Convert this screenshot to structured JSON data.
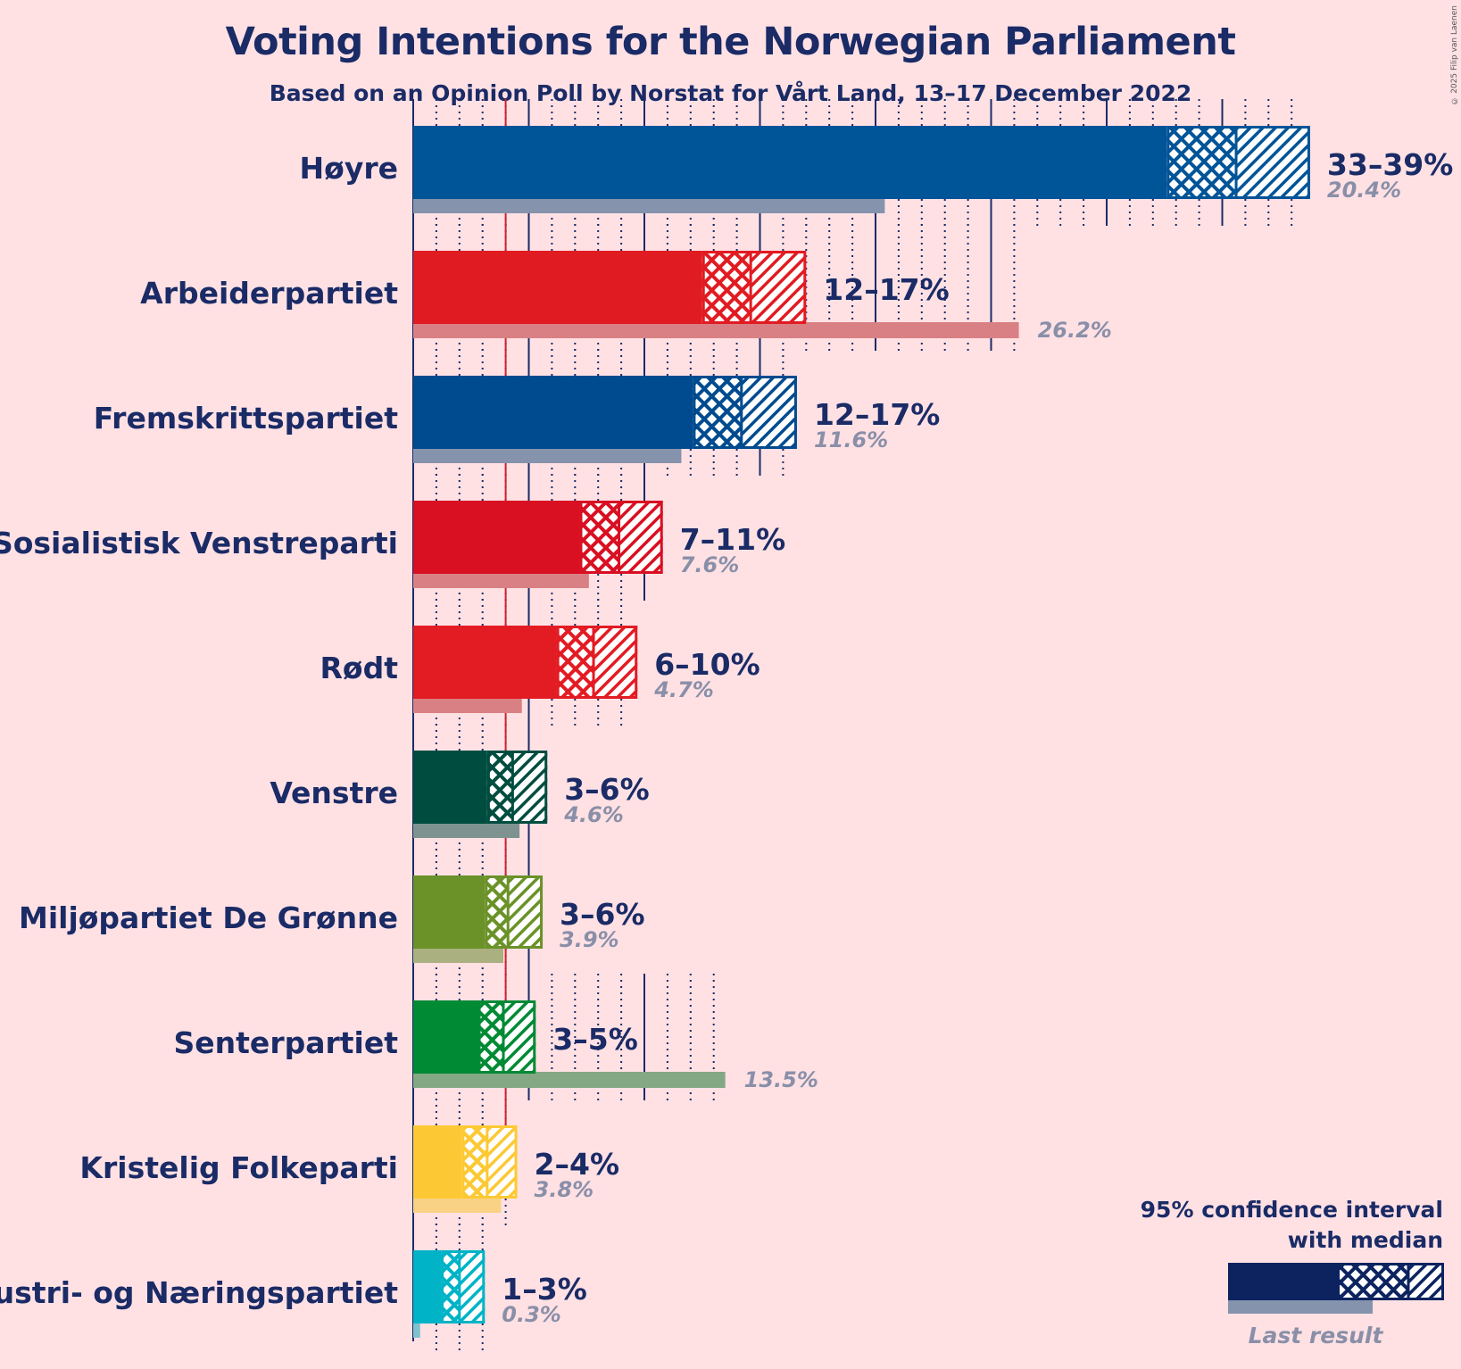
{
  "title": "Voting Intentions for the Norwegian Parliament",
  "subtitle": "Based on an Opinion Poll by Norstat for Vårt Land, 13–17 December 2022",
  "copyright": "© 2025 Filip van Laenen",
  "legend": {
    "line1": "95% confidence interval",
    "line2": "with median",
    "last_result": "Last result"
  },
  "chart_data": {
    "type": "bar",
    "orientation": "horizontal",
    "x_unit": "%",
    "xlim": [
      0,
      39
    ],
    "threshold": 4,
    "categories": [
      "Høyre",
      "Arbeiderpartiet",
      "Fremskrittspartiet",
      "Sosialistisk Venstreparti",
      "Rødt",
      "Venstre",
      "Miljøpartiet De Grønne",
      "Senterpartiet",
      "Kristelig Folkeparti",
      "Industri- og Næringspartiet"
    ],
    "parties": [
      {
        "name": "Høyre",
        "range_label": "33–39%",
        "last_label": "20.4%",
        "ci_low": 32.6,
        "median": 35.6,
        "ci_high": 38.8,
        "last": 20.4,
        "color": "#005498",
        "last_color": "#8593ad"
      },
      {
        "name": "Arbeiderpartiet",
        "range_label": "12–17%",
        "last_label": "26.2%",
        "ci_low": 12.5,
        "median": 14.6,
        "ci_high": 17.0,
        "last": 26.2,
        "color": "#e11b22",
        "last_color": "#d98084"
      },
      {
        "name": "Fremskrittspartiet",
        "range_label": "12–17%",
        "last_label": "11.6%",
        "ci_low": 12.1,
        "median": 14.2,
        "ci_high": 16.6,
        "last": 11.6,
        "color": "#004b8f",
        "last_color": "#8593ad"
      },
      {
        "name": "Sosialistisk Venstreparti",
        "range_label": "7–11%",
        "last_label": "7.6%",
        "ci_low": 7.2,
        "median": 8.9,
        "ci_high": 10.8,
        "last": 7.6,
        "color": "#d90f22",
        "last_color": "#d98084"
      },
      {
        "name": "Rødt",
        "range_label": "6–10%",
        "last_label": "4.7%",
        "ci_low": 6.2,
        "median": 7.8,
        "ci_high": 9.7,
        "last": 4.7,
        "color": "#e31b23",
        "last_color": "#d98084"
      },
      {
        "name": "Venstre",
        "range_label": "3–6%",
        "last_label": "4.6%",
        "ci_low": 3.2,
        "median": 4.3,
        "ci_high": 5.8,
        "last": 4.6,
        "color": "#004d40",
        "last_color": "#7e938f"
      },
      {
        "name": "Miljøpartiet De Grønne",
        "range_label": "3–6%",
        "last_label": "3.9%",
        "ci_low": 3.1,
        "median": 4.1,
        "ci_high": 5.6,
        "last": 3.9,
        "color": "#6a9228",
        "last_color": "#aab080"
      },
      {
        "name": "Senterpartiet",
        "range_label": "3–5%",
        "last_label": "13.5%",
        "ci_low": 2.8,
        "median": 3.9,
        "ci_high": 5.3,
        "last": 13.5,
        "color": "#008a34",
        "last_color": "#84a884"
      },
      {
        "name": "Kristelig Folkeparti",
        "range_label": "2–4%",
        "last_label": "3.8%",
        "ci_low": 2.1,
        "median": 3.2,
        "ci_high": 4.5,
        "last": 3.8,
        "color": "#fcc934",
        "last_color": "#f9d286"
      },
      {
        "name": "Industri- og Næringspartiet",
        "range_label": "1–3%",
        "last_label": "0.3%",
        "ci_low": 1.2,
        "median": 2.0,
        "ci_high": 3.1,
        "last": 0.3,
        "color": "#00b3c6",
        "last_color": "#7fc2cd"
      }
    ]
  }
}
